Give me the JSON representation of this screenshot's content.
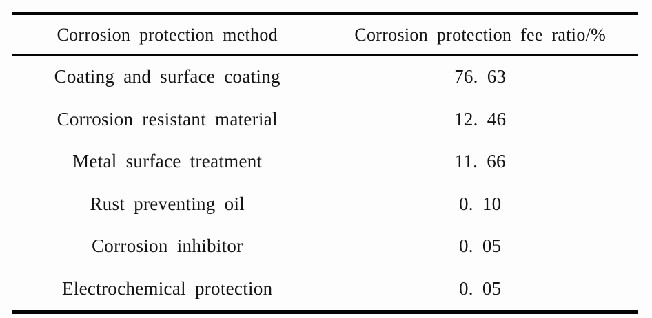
{
  "table": {
    "columns": [
      {
        "label": "Corrosion protection method"
      },
      {
        "label": "Corrosion protection fee ratio/%"
      }
    ],
    "rows": [
      {
        "method": "Coating and surface coating",
        "ratio": "76. 63"
      },
      {
        "method": "Corrosion resistant material",
        "ratio": "12. 46"
      },
      {
        "method": "Metal surface treatment",
        "ratio": "11. 66"
      },
      {
        "method": "Rust preventing oil",
        "ratio": "0. 10"
      },
      {
        "method": "Corrosion inhibitor",
        "ratio": "0. 05"
      },
      {
        "method": "Electrochemical protection",
        "ratio": "0. 05"
      }
    ],
    "colors": {
      "rule": "#050505",
      "text": "#141414",
      "background": "#fdfdfd"
    }
  }
}
